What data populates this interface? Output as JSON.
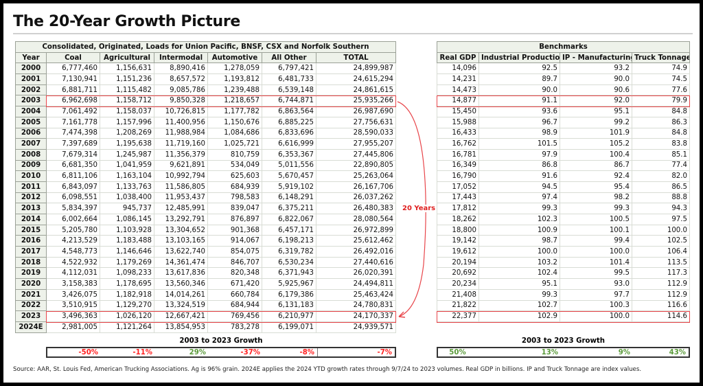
{
  "title": "The 20-Year Growth Picture",
  "left_table": {
    "group_header": "Consolidated, Originated, Loads for Union Pacific, BNSF, CSX and Norfolk Southern",
    "columns": [
      "Year",
      "Coal",
      "Agricultural",
      "Intermodal",
      "Automotive",
      "All Other",
      "TOTAL"
    ],
    "rows": [
      [
        "2000",
        "6,777,460",
        "1,156,631",
        "8,890,416",
        "1,278,059",
        "6,797,421",
        "24,899,987"
      ],
      [
        "2001",
        "7,130,941",
        "1,151,236",
        "8,657,572",
        "1,193,812",
        "6,481,733",
        "24,615,294"
      ],
      [
        "2002",
        "6,881,711",
        "1,115,482",
        "9,085,786",
        "1,239,488",
        "6,539,148",
        "24,861,615"
      ],
      [
        "2003",
        "6,962,698",
        "1,158,712",
        "9,850,328",
        "1,218,657",
        "6,744,871",
        "25,935,266"
      ],
      [
        "2004",
        "7,061,492",
        "1,158,037",
        "10,726,815",
        "1,177,782",
        "6,863,564",
        "26,987,690"
      ],
      [
        "2005",
        "7,161,778",
        "1,157,996",
        "11,400,956",
        "1,150,676",
        "6,885,225",
        "27,756,631"
      ],
      [
        "2006",
        "7,474,398",
        "1,208,269",
        "11,988,984",
        "1,084,686",
        "6,833,696",
        "28,590,033"
      ],
      [
        "2007",
        "7,397,689",
        "1,195,638",
        "11,719,160",
        "1,025,721",
        "6,616,999",
        "27,955,207"
      ],
      [
        "2008",
        "7,679,314",
        "1,245,987",
        "11,356,379",
        "810,759",
        "6,353,367",
        "27,445,806"
      ],
      [
        "2009",
        "6,681,350",
        "1,041,959",
        "9,621,891",
        "534,049",
        "5,011,556",
        "22,890,805"
      ],
      [
        "2010",
        "6,811,106",
        "1,163,104",
        "10,992,794",
        "625,603",
        "5,670,457",
        "25,263,064"
      ],
      [
        "2011",
        "6,843,097",
        "1,133,763",
        "11,586,805",
        "684,939",
        "5,919,102",
        "26,167,706"
      ],
      [
        "2012",
        "6,098,551",
        "1,038,400",
        "11,953,437",
        "798,583",
        "6,148,291",
        "26,037,262"
      ],
      [
        "2013",
        "5,834,397",
        "945,737",
        "12,485,991",
        "839,047",
        "6,375,211",
        "26,480,383"
      ],
      [
        "2014",
        "6,002,664",
        "1,086,145",
        "13,292,791",
        "876,897",
        "6,822,067",
        "28,080,564"
      ],
      [
        "2015",
        "5,205,780",
        "1,103,928",
        "13,304,652",
        "901,368",
        "6,457,171",
        "26,972,899"
      ],
      [
        "2016",
        "4,213,529",
        "1,183,488",
        "13,103,165",
        "914,067",
        "6,198,213",
        "25,612,462"
      ],
      [
        "2017",
        "4,548,773",
        "1,146,646",
        "13,622,740",
        "854,075",
        "6,319,782",
        "26,492,016"
      ],
      [
        "2018",
        "4,522,932",
        "1,179,269",
        "14,361,474",
        "846,707",
        "6,530,234",
        "27,440,616"
      ],
      [
        "2019",
        "4,112,031",
        "1,098,233",
        "13,617,836",
        "820,348",
        "6,371,943",
        "26,020,391"
      ],
      [
        "2020",
        "3,158,383",
        "1,178,695",
        "13,560,346",
        "671,420",
        "5,925,967",
        "24,494,811"
      ],
      [
        "2021",
        "3,426,075",
        "1,182,918",
        "14,014,261",
        "660,784",
        "6,179,386",
        "25,463,424"
      ],
      [
        "2022",
        "3,510,915",
        "1,129,270",
        "13,324,519",
        "684,944",
        "6,131,183",
        "24,780,831"
      ],
      [
        "2023",
        "3,496,363",
        "1,026,120",
        "12,667,421",
        "769,456",
        "6,210,977",
        "24,170,337"
      ],
      [
        "2024E",
        "2,981,005",
        "1,121,264",
        "13,854,953",
        "783,278",
        "6,199,071",
        "24,939,571"
      ]
    ],
    "growth_label": "2003 to 2023 Growth",
    "growth": [
      "-50%",
      "-11%",
      "29%",
      "-37%",
      "-8%",
      "-7%"
    ]
  },
  "right_table": {
    "group_header": "Benchmarks",
    "columns": [
      "Real GDP",
      "Industrial Production",
      "IP - Manufacturing",
      "Truck Tonnage"
    ],
    "rows": [
      [
        "14,096",
        "92.5",
        "93.2",
        "74.9"
      ],
      [
        "14,231",
        "89.7",
        "90.0",
        "74.5"
      ],
      [
        "14,473",
        "90.0",
        "90.6",
        "77.6"
      ],
      [
        "14,877",
        "91.1",
        "92.0",
        "79.9"
      ],
      [
        "15,450",
        "93.6",
        "95.1",
        "84.8"
      ],
      [
        "15,988",
        "96.7",
        "99.2",
        "86.3"
      ],
      [
        "16,433",
        "98.9",
        "101.9",
        "84.8"
      ],
      [
        "16,762",
        "101.5",
        "105.2",
        "83.8"
      ],
      [
        "16,781",
        "97.9",
        "100.4",
        "85.1"
      ],
      [
        "16,349",
        "86.8",
        "86.7",
        "77.4"
      ],
      [
        "16,790",
        "91.6",
        "92.4",
        "82.0"
      ],
      [
        "17,052",
        "94.5",
        "95.4",
        "86.5"
      ],
      [
        "17,443",
        "97.4",
        "98.2",
        "88.8"
      ],
      [
        "17,812",
        "99.3",
        "99.3",
        "94.3"
      ],
      [
        "18,262",
        "102.3",
        "100.5",
        "97.5"
      ],
      [
        "18,800",
        "100.9",
        "100.1",
        "100.0"
      ],
      [
        "19,142",
        "98.7",
        "99.4",
        "102.5"
      ],
      [
        "19,612",
        "100.0",
        "100.0",
        "106.4"
      ],
      [
        "20,194",
        "103.2",
        "101.4",
        "113.5"
      ],
      [
        "20,692",
        "102.4",
        "99.5",
        "117.3"
      ],
      [
        "20,234",
        "95.1",
        "93.0",
        "112.9"
      ],
      [
        "21,408",
        "99.3",
        "97.7",
        "112.9"
      ],
      [
        "21,822",
        "102.7",
        "100.3",
        "116.6"
      ],
      [
        "22,377",
        "102.9",
        "100.0",
        "114.6"
      ]
    ],
    "growth_label": "2003 to 2023 Growth",
    "growth": [
      "50%",
      "13%",
      "9%",
      "43%"
    ]
  },
  "annotation": "20 Years",
  "source": "Source: AAR, St. Louis Fed, American Trucking Associations. Ag is 96% grain. 2024E applies the 2024 YTD growth rates through 9/7/24 to 2023 volumes. Real GDP in billions. IP and Truck Tonnage are index values.",
  "colors": {
    "highlight": "#e8454a",
    "negative": "#ff2020",
    "positive": "#5a9a3a",
    "header_bg": "#eef2ea"
  }
}
